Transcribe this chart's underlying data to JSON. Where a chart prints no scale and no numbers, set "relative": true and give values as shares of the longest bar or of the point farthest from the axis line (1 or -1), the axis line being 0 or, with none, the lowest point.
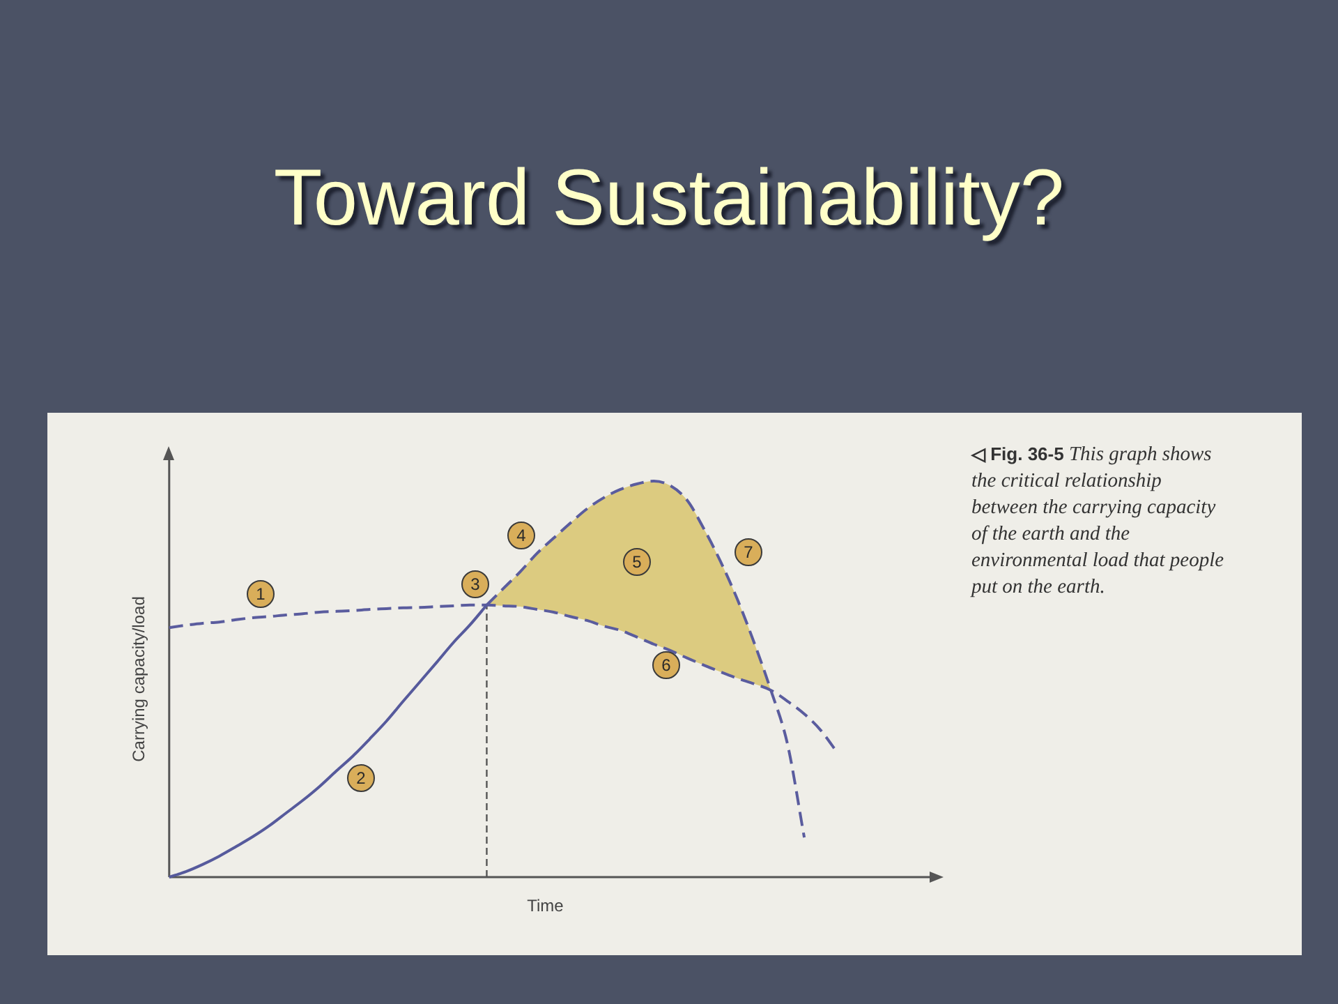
{
  "chart_data": {
    "type": "line",
    "title": "Toward Sustainability?",
    "xlabel": "Time",
    "ylabel": "Carrying capacity/load",
    "relative": true,
    "categories": [
      null,
      null,
      null,
      null,
      null,
      null,
      null,
      null,
      null,
      null,
      null,
      null,
      null,
      null,
      null,
      null,
      null,
      null,
      null,
      null,
      null,
      null,
      null,
      null,
      null,
      null,
      null,
      null,
      null,
      null,
      null,
      null,
      null,
      null,
      null,
      null,
      null,
      null,
      null,
      null,
      null,
      null,
      null,
      null,
      null,
      null
    ],
    "series": [
      {
        "type": "area",
        "color": "#dccb80",
        "values": [
          null,
          null,
          null,
          null,
          null,
          null,
          null,
          null,
          null,
          null,
          null,
          null,
          null,
          null,
          null,
          null,
          null,
          null,
          null,
          0.687,
          0.729,
          0.771,
          0.817,
          0.856,
          0.894,
          0.93,
          0.958,
          0.979,
          0.993,
          1,
          0.988,
          0.951,
          0.879,
          0.796,
          0.701,
          0.592,
          0.472,
          null,
          null,
          null,
          null,
          null,
          null,
          null,
          null,
          null
        ]
      },
      {
        "type": "line",
        "color": "#565a9c",
        "line_style": "solid",
        "values": [
          0,
          0.014,
          0.032,
          0.053,
          0.077,
          0.102,
          0.13,
          0.162,
          0.194,
          0.229,
          0.268,
          0.306,
          0.349,
          0.394,
          0.444,
          0.493,
          0.542,
          0.592,
          0.637,
          0.687,
          null,
          null,
          null,
          null,
          null,
          null,
          null,
          null,
          null,
          null,
          null,
          null,
          null,
          null,
          null,
          null,
          null,
          null,
          null,
          null,
          null,
          null,
          null,
          null,
          null,
          null
        ]
      },
      {
        "type": "line",
        "color": "#5a5c9e",
        "line_style": "dashed",
        "values": [
          null,
          null,
          null,
          null,
          null,
          null,
          null,
          null,
          null,
          null,
          null,
          null,
          null,
          null,
          null,
          null,
          null,
          null,
          null,
          0.687,
          0.729,
          0.771,
          0.817,
          0.856,
          0.894,
          0.93,
          0.958,
          0.979,
          0.993,
          1,
          0.988,
          0.951,
          0.879,
          0.796,
          0.701,
          0.592,
          0.472,
          0.335,
          0.1,
          null,
          null,
          null,
          null,
          null,
          null,
          null
        ]
      },
      {
        "type": "line",
        "color": "#5a5c9e",
        "line_style": "dashed",
        "values": [
          0.63,
          0.636,
          0.641,
          0.644,
          0.65,
          0.655,
          0.658,
          0.662,
          0.665,
          0.669,
          0.671,
          0.673,
          0.676,
          0.678,
          0.68,
          0.681,
          0.683,
          0.685,
          0.687,
          0.687,
          0.685,
          0.683,
          0.676,
          0.669,
          0.658,
          0.648,
          0.634,
          0.623,
          0.606,
          0.588,
          0.572,
          0.553,
          0.535,
          0.518,
          0.502,
          0.488,
          0.472,
          0.444,
          0.412,
          0.37,
          0.313,
          null,
          null,
          null,
          null,
          null
        ]
      }
    ],
    "annotations": [
      "◁ Fig. 36-5",
      "This graph shows",
      "the critical relationship between the carrying capacity of the earth and the environmental load that people put on the earth.",
      "1",
      "2",
      "3",
      "4",
      "5",
      "6",
      "7"
    ]
  }
}
